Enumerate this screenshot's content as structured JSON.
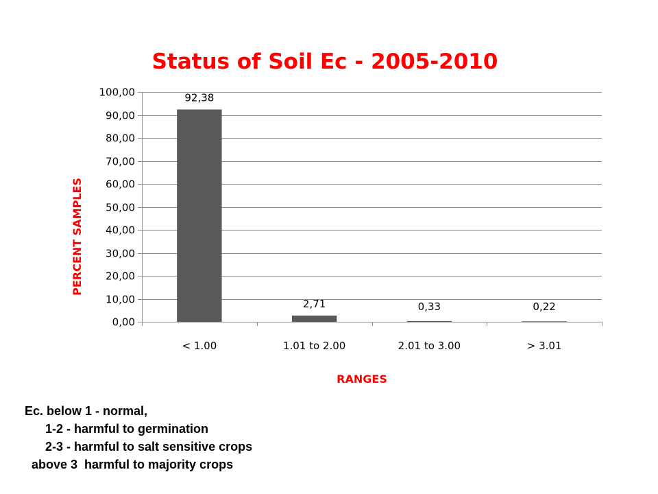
{
  "chart_data": {
    "type": "bar",
    "title": "Status of Soil Ec  -  2005-2010",
    "xlabel": "RANGES",
    "ylabel": "PERCENT SAMPLES",
    "categories": [
      "< 1.00",
      "1.01 to 2.00",
      "2.01 to 3.00",
      "> 3.01"
    ],
    "values": [
      92.38,
      2.71,
      0.33,
      0.22
    ],
    "data_labels": [
      "92,38",
      "2,71",
      "0,33",
      "0,22"
    ],
    "ylim": [
      0,
      100
    ],
    "yticks": [
      0,
      10,
      20,
      30,
      40,
      50,
      60,
      70,
      80,
      90,
      100
    ],
    "ytick_labels": [
      "0,00",
      "10,00",
      "20,00",
      "30,00",
      "40,00",
      "50,00",
      "60,00",
      "70,00",
      "80,00",
      "90,00",
      "100,00"
    ],
    "grid": true,
    "legend": "none",
    "bar_color": "#595959",
    "title_color": "#ff0000"
  },
  "notes": [
    "Ec. below 1 - normal,",
    "      1-2 - harmful to germination",
    "      2-3 - harmful to salt sensitive crops",
    "  above 3  harmful to majority crops"
  ]
}
